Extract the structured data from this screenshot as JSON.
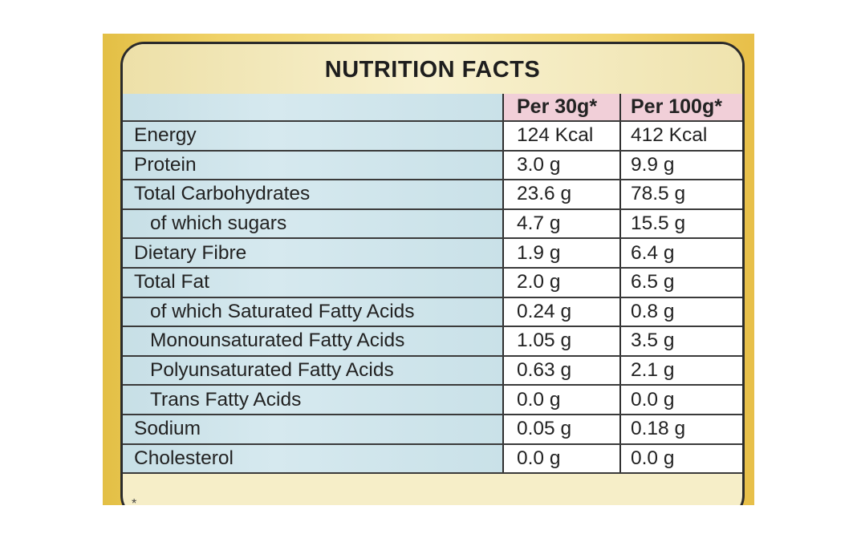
{
  "title": "NUTRITION FACTS",
  "columns": [
    "Per 30g*",
    "Per 100g*"
  ],
  "rows": [
    {
      "name": "Energy",
      "per30": "124 Kcal",
      "per100": "412 Kcal"
    },
    {
      "name": "Protein",
      "per30": "3.0 g",
      "per100": "9.9 g"
    },
    {
      "name": "Total Carbohydrates",
      "per30": "23.6 g",
      "per100": "78.5 g"
    },
    {
      "name": "of which sugars",
      "per30": "4.7 g",
      "per100": "15.5 g"
    },
    {
      "name": "Dietary Fibre",
      "per30": "1.9 g",
      "per100": "6.4 g"
    },
    {
      "name": "Total Fat",
      "per30": "2.0 g",
      "per100": "6.5 g"
    },
    {
      "name": "of which Saturated Fatty Acids",
      "per30": "0.24 g",
      "per100": "0.8 g"
    },
    {
      "name": "Monounsaturated Fatty Acids",
      "per30": "1.05 g",
      "per100": "3.5 g"
    },
    {
      "name": "Polyunsaturated Fatty Acids",
      "per30": "0.63 g",
      "per100": "2.1 g"
    },
    {
      "name": "Trans Fatty Acids",
      "per30": "0.0 g",
      "per100": "0.0 g"
    },
    {
      "name": "Sodium",
      "per30": "0.05 g",
      "per100": "0.18 g"
    },
    {
      "name": "Cholesterol",
      "per30": "0.0 g",
      "per100": "0.0 g"
    }
  ],
  "footnote": "*"
}
